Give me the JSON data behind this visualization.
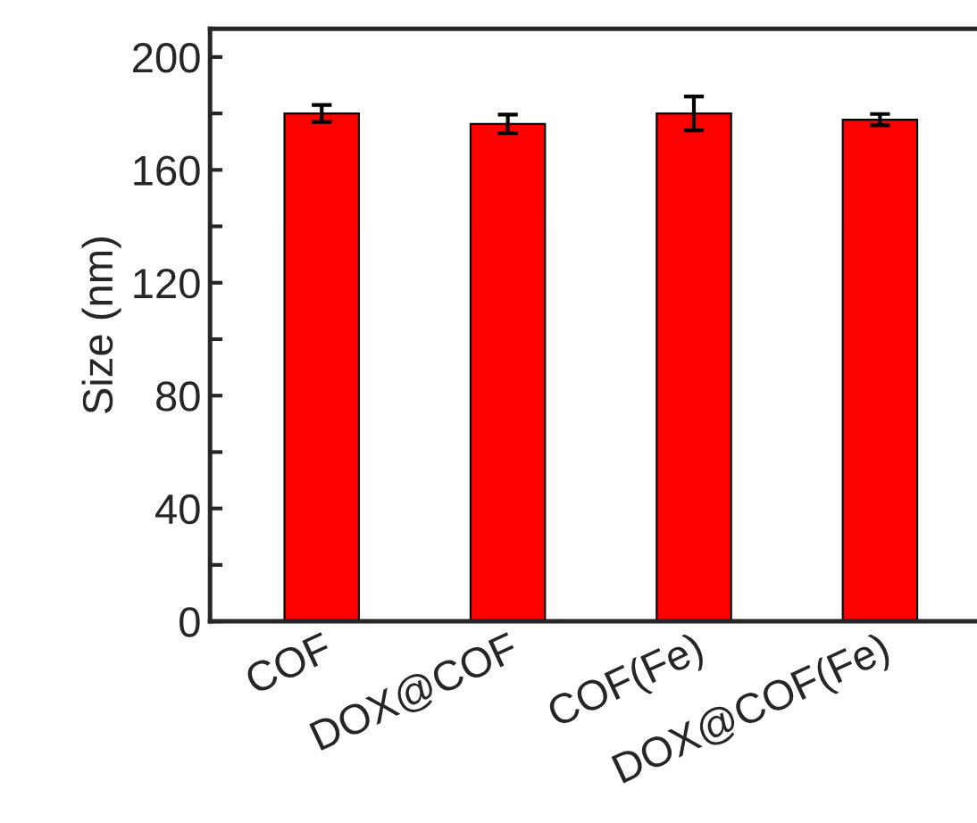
{
  "chart_data": {
    "type": "bar",
    "ylabel": "Size (nm)",
    "categories": [
      "COF",
      "DOX@COF",
      "COF(Fe)",
      "DOX@COF(Fe)"
    ],
    "values": [
      180,
      176.3,
      180,
      177.8
    ],
    "errors": [
      3,
      3.3,
      6,
      2
    ],
    "color": "#ff0000",
    "ylim": [
      0,
      210
    ],
    "yticks": [
      0,
      {
        "value": 20,
        "label": null
      },
      40,
      {
        "value": 60,
        "label": null
      },
      80,
      {
        "value": 100,
        "label": null
      },
      120,
      {
        "value": 140,
        "label": null
      },
      160,
      {
        "value": 180,
        "label": null
      },
      200
    ]
  }
}
